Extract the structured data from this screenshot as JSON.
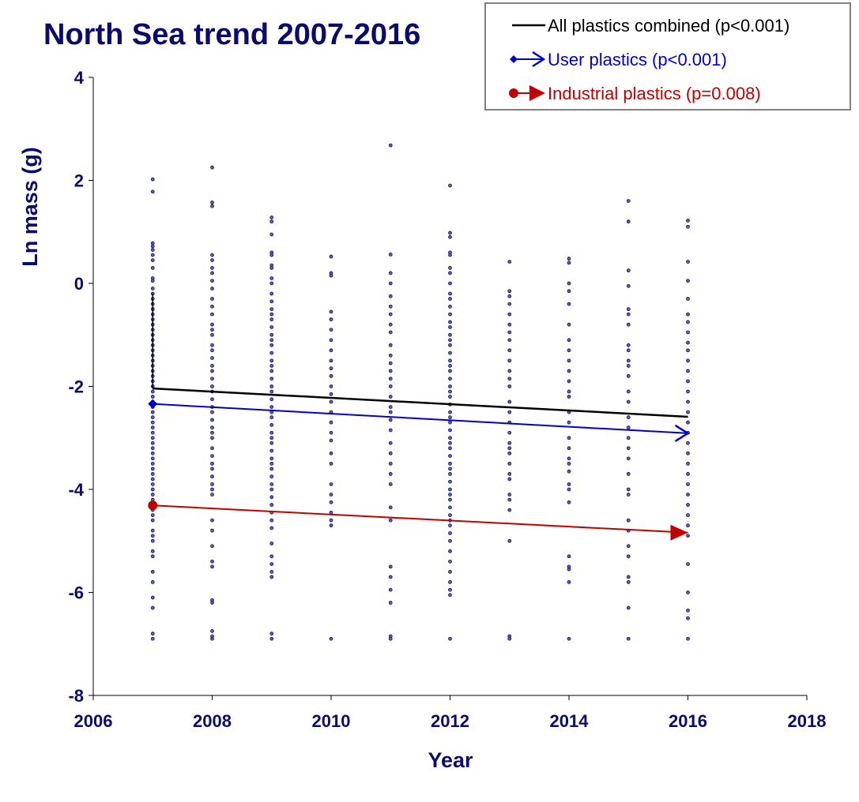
{
  "chart_data": {
    "type": "scatter",
    "title": "North Sea trend 2007-2016",
    "xlabel": "Year",
    "ylabel": "Ln mass (g)",
    "xlim": [
      2006,
      2018
    ],
    "ylim": [
      -8,
      4
    ],
    "xticks": [
      "2006",
      "2008",
      "2010",
      "2012",
      "2014",
      "2016",
      "2018"
    ],
    "yticks": [
      "4",
      "2",
      "0",
      "-2",
      "-4",
      "-6",
      "-8"
    ],
    "grid": false,
    "legend_position": "top-right",
    "colors": {
      "text": "#0b0b6b",
      "points": "#5a5ac8",
      "all": "#000000",
      "user": "#0000cc",
      "industrial": "#c00000"
    },
    "trend_lines": [
      {
        "name": "All plastics combined (p<0.001)",
        "x": [
          2007,
          2016
        ],
        "y": [
          -2.04,
          -2.59
        ],
        "marker": "none"
      },
      {
        "name": "User plastics (p<0.001)",
        "x": [
          2007,
          2016
        ],
        "y": [
          -2.34,
          -2.91
        ],
        "marker": "diamond-arrow"
      },
      {
        "name": "Industrial plastics (p=0.008)",
        "x": [
          2007,
          2016
        ],
        "y": [
          -4.31,
          -4.84
        ],
        "marker": "circle-arrow"
      }
    ],
    "scatter": [
      {
        "x": 2007,
        "y": [
          2.02,
          1.78,
          0.78,
          0.72,
          0.65,
          0.55,
          0.45,
          0.3,
          0.1,
          0.05,
          -0.1,
          -0.2,
          -0.3,
          -0.4,
          -0.5,
          -0.6,
          -0.7,
          -0.8,
          -0.9,
          -1.0,
          -1.1,
          -1.2,
          -1.3,
          -1.4,
          -1.5,
          -1.6,
          -1.7,
          -1.8,
          -1.9,
          -2.0,
          -2.1,
          -2.2,
          -2.3,
          -2.4,
          -2.5,
          -2.6,
          -2.7,
          -2.8,
          -2.9,
          -3.0,
          -3.1,
          -3.2,
          -3.3,
          -3.4,
          -3.5,
          -3.6,
          -3.7,
          -3.8,
          -3.9,
          -4.0,
          -4.1,
          -4.2,
          -4.4,
          -4.5,
          -4.6,
          -4.8,
          -4.9,
          -5.0,
          -5.2,
          -5.3,
          -5.6,
          -5.8,
          -6.1,
          -6.3,
          -6.8,
          -6.9
        ]
      },
      {
        "x": 2008,
        "y": [
          2.25,
          1.57,
          1.5,
          0.55,
          0.45,
          0.3,
          0.2,
          0.05,
          -0.1,
          -0.3,
          -0.45,
          -0.6,
          -0.8,
          -0.9,
          -1.0,
          -1.2,
          -1.3,
          -1.45,
          -1.6,
          -1.7,
          -1.85,
          -2.0,
          -2.1,
          -2.25,
          -2.4,
          -2.5,
          -2.65,
          -2.8,
          -2.9,
          -3.0,
          -3.2,
          -3.35,
          -3.5,
          -3.6,
          -3.75,
          -3.9,
          -4.0,
          -4.1,
          -4.6,
          -4.8,
          -5.1,
          -5.4,
          -5.5,
          -6.15,
          -6.2,
          -6.75,
          -6.85,
          -6.9
        ]
      },
      {
        "x": 2009,
        "y": [
          1.28,
          1.2,
          0.95,
          0.6,
          0.55,
          0.35,
          0.3,
          0.1,
          0,
          -0.2,
          -0.35,
          -0.5,
          -0.6,
          -0.7,
          -0.85,
          -1.0,
          -1.1,
          -1.2,
          -1.35,
          -1.5,
          -1.6,
          -1.7,
          -1.85,
          -2.0,
          -2.1,
          -2.25,
          -2.4,
          -2.5,
          -2.6,
          -2.75,
          -2.9,
          -3.0,
          -3.1,
          -3.25,
          -3.4,
          -3.5,
          -3.6,
          -3.75,
          -3.9,
          -4.0,
          -4.15,
          -4.3,
          -4.45,
          -4.6,
          -4.75,
          -5.05,
          -5.3,
          -5.45,
          -5.6,
          -5.7,
          -6.8,
          -6.9
        ]
      },
      {
        "x": 2010,
        "y": [
          0.52,
          0.2,
          0.15,
          -0.55,
          -0.7,
          -0.9,
          -1.1,
          -1.3,
          -1.5,
          -1.65,
          -1.8,
          -2.0,
          -2.15,
          -2.3,
          -2.5,
          -2.7,
          -2.9,
          -3.05,
          -3.3,
          -3.5,
          -3.9,
          -4.1,
          -4.25,
          -4.45,
          -4.6,
          -4.7,
          -6.9
        ]
      },
      {
        "x": 2011,
        "y": [
          2.68,
          0.56,
          0.2,
          0,
          -0.25,
          -0.45,
          -0.6,
          -0.8,
          -0.95,
          -1.2,
          -1.4,
          -1.55,
          -1.7,
          -1.85,
          -2.0,
          -2.2,
          -2.4,
          -2.5,
          -2.65,
          -2.85,
          -3.1,
          -3.3,
          -3.5,
          -3.7,
          -3.9,
          -4.35,
          -4.6,
          -5.5,
          -5.7,
          -5.95,
          -6.2,
          -6.85,
          -6.9
        ]
      },
      {
        "x": 2012,
        "y": [
          1.9,
          0.98,
          0.9,
          0.6,
          0.55,
          0.3,
          0.2,
          0,
          -0.2,
          -0.3,
          -0.45,
          -0.6,
          -0.75,
          -0.85,
          -1.0,
          -1.1,
          -1.2,
          -1.35,
          -1.5,
          -1.6,
          -1.7,
          -1.85,
          -2.0,
          -2.1,
          -2.2,
          -2.35,
          -2.5,
          -2.6,
          -2.7,
          -2.85,
          -3.0,
          -3.1,
          -3.2,
          -3.35,
          -3.5,
          -3.6,
          -3.7,
          -3.85,
          -4.0,
          -4.1,
          -4.2,
          -4.35,
          -4.5,
          -4.6,
          -4.7,
          -4.85,
          -5.0,
          -5.2,
          -5.4,
          -5.6,
          -5.8,
          -5.95,
          -6.05,
          -6.9
        ]
      },
      {
        "x": 2013,
        "y": [
          0.42,
          -0.15,
          -0.25,
          -0.4,
          -0.6,
          -0.8,
          -0.95,
          -1.1,
          -1.3,
          -1.5,
          -1.7,
          -1.85,
          -2.0,
          -2.3,
          -2.5,
          -2.7,
          -2.9,
          -3.1,
          -3.2,
          -3.3,
          -3.5,
          -3.7,
          -3.8,
          -4.1,
          -4.2,
          -4.4,
          -5.0,
          -6.85,
          -6.9
        ]
      },
      {
        "x": 2014,
        "y": [
          0.48,
          0.4,
          0,
          -0.15,
          -0.4,
          -0.8,
          -1.1,
          -1.3,
          -1.5,
          -1.7,
          -1.9,
          -2.1,
          -2.2,
          -2.5,
          -2.7,
          -3.0,
          -3.2,
          -3.4,
          -3.5,
          -3.65,
          -3.9,
          -4.0,
          -4.25,
          -5.3,
          -5.5,
          -5.55,
          -5.8,
          -6.9
        ]
      },
      {
        "x": 2015,
        "y": [
          1.6,
          1.2,
          0.25,
          -0.05,
          -0.5,
          -0.6,
          -0.8,
          -1.2,
          -1.3,
          -1.5,
          -1.6,
          -1.8,
          -2.1,
          -2.3,
          -2.6,
          -2.8,
          -3.0,
          -3.2,
          -3.4,
          -3.7,
          -4.0,
          -4.1,
          -4.6,
          -4.8,
          -5.1,
          -5.3,
          -5.7,
          -5.8,
          -6.3,
          -6.9
        ]
      },
      {
        "x": 2016,
        "y": [
          1.22,
          1.1,
          0.42,
          0.05,
          -0.3,
          -0.6,
          -0.75,
          -0.95,
          -1.15,
          -1.3,
          -1.5,
          -1.7,
          -1.9,
          -2.1,
          -2.3,
          -2.5,
          -2.7,
          -2.9,
          -3.1,
          -3.3,
          -3.5,
          -3.7,
          -3.9,
          -4.1,
          -4.3,
          -4.5,
          -4.7,
          -4.9,
          -5.45,
          -6.0,
          -6.35,
          -6.5,
          -6.9
        ]
      }
    ]
  }
}
